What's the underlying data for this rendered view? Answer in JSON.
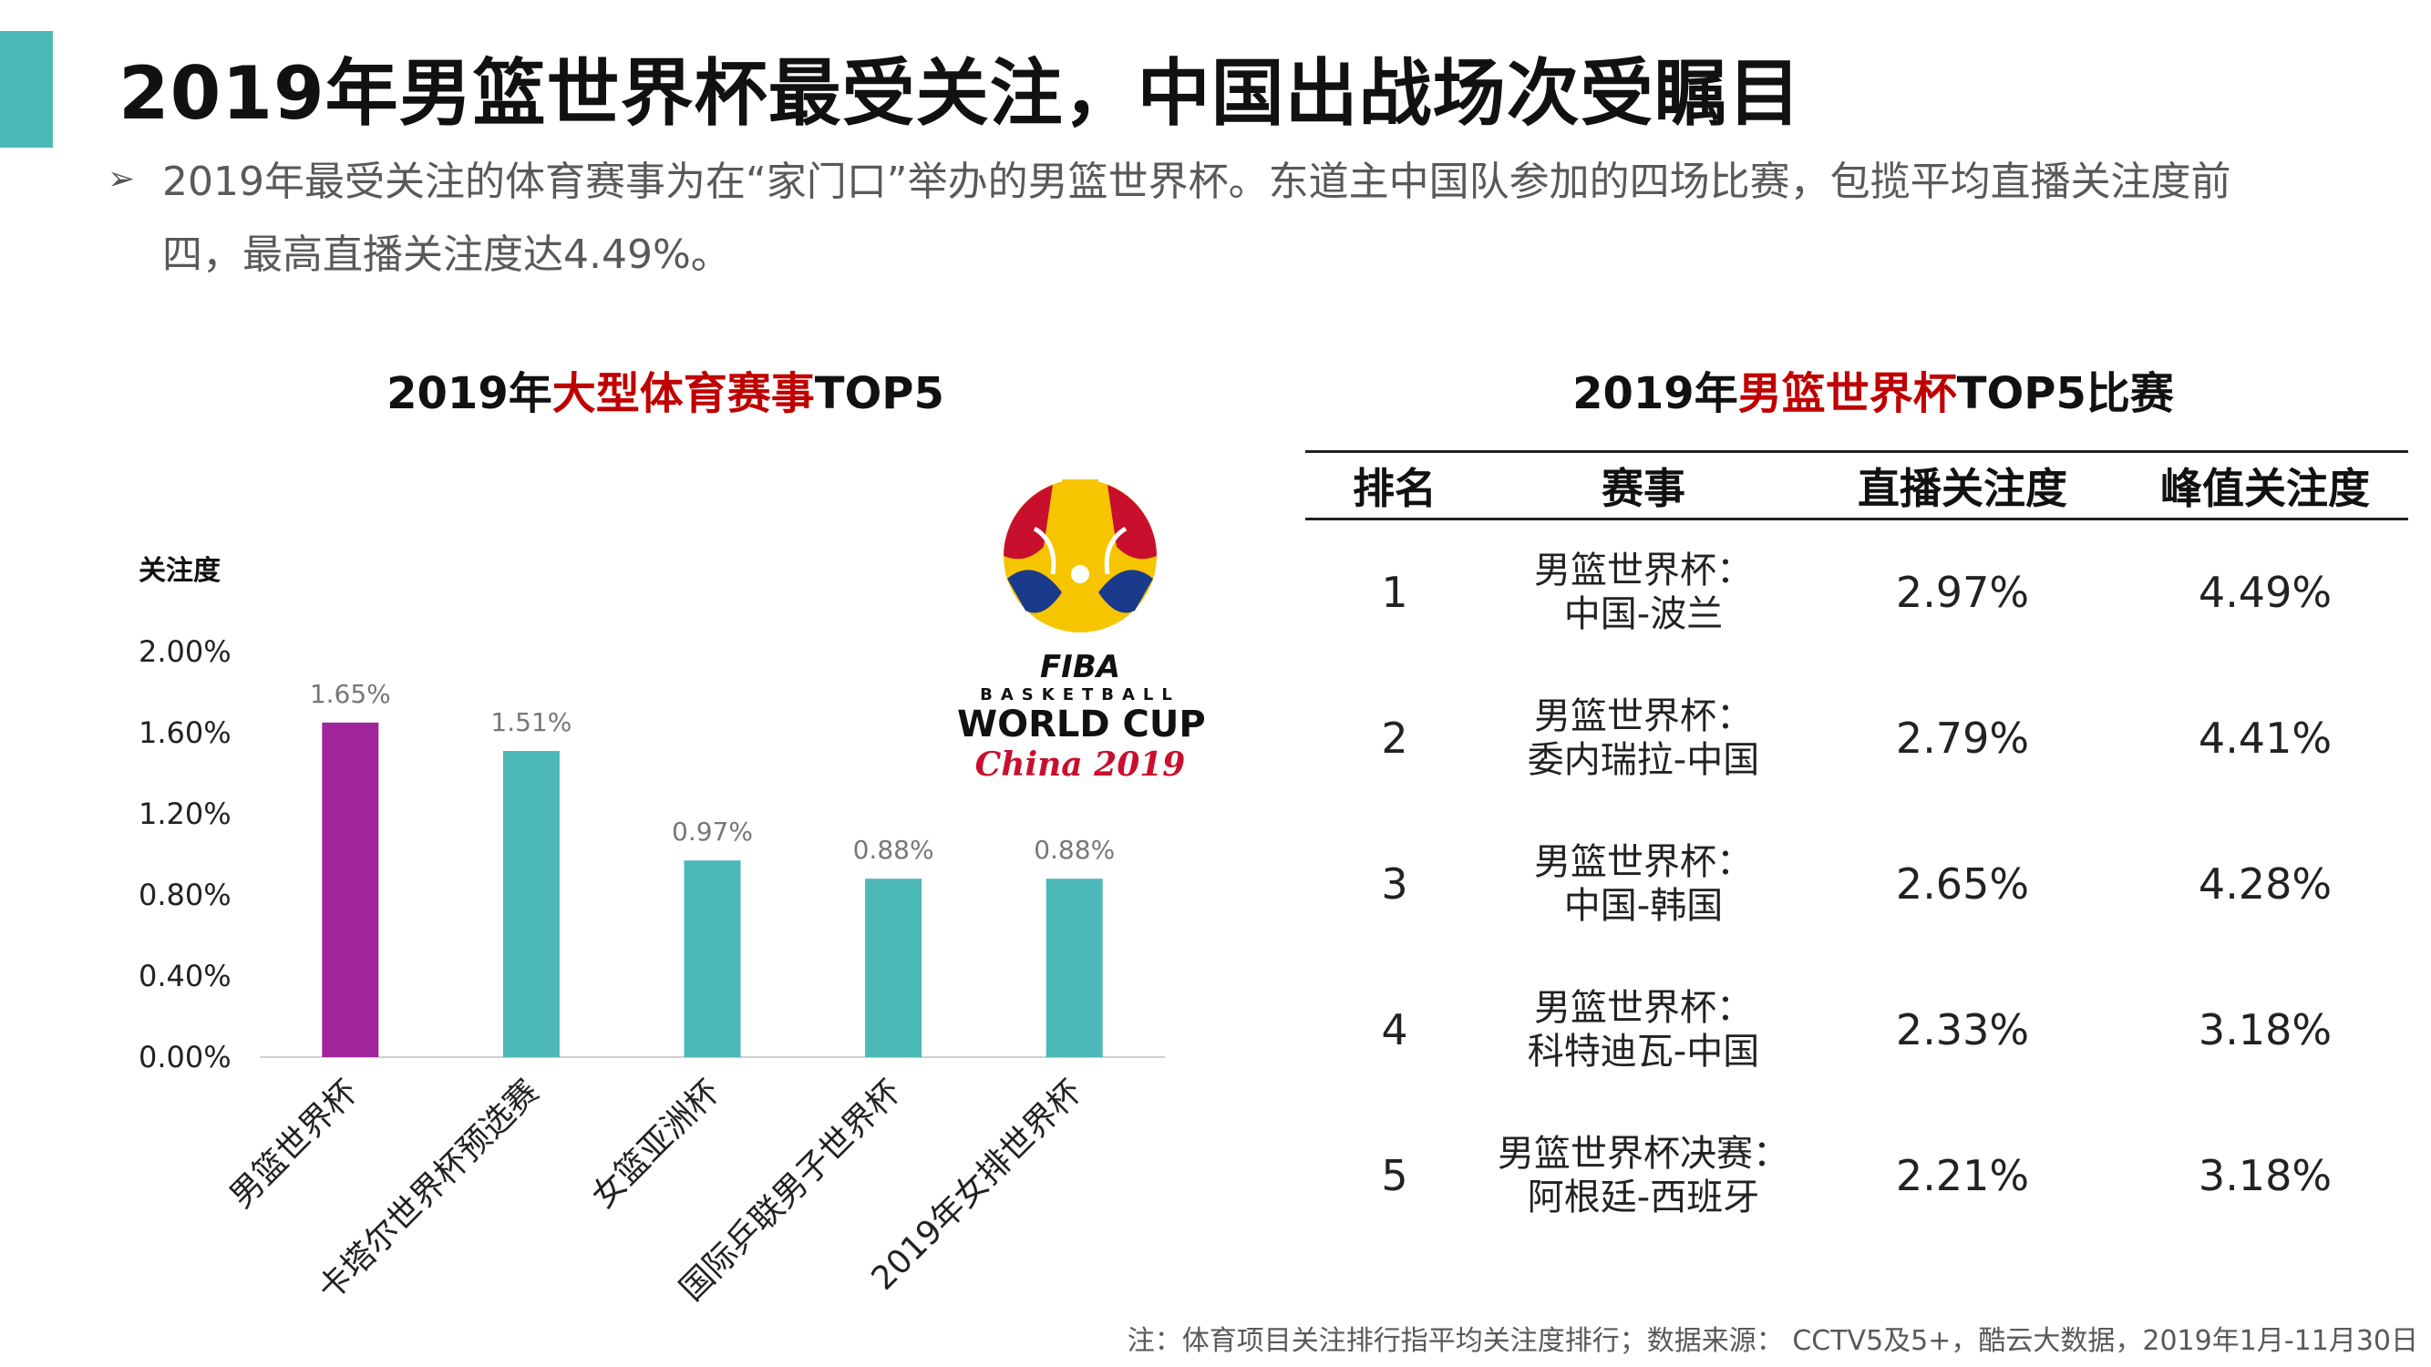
{
  "header": {
    "title": "2019年男篮世界杯最受关注，中国出战场次受瞩目",
    "bullet_line1": "2019年最受关注的体育赛事为在“家门口”举办的男篮世界杯。东道主中国队参加的四场比赛，包揽平均直播关注度前",
    "bullet_line2": "四，最高直播关注度达4.49%。"
  },
  "chart_title": {
    "prefix": "2019年",
    "highlight": "大型体育赛事",
    "suffix": "TOP5"
  },
  "chart_data": {
    "type": "bar",
    "ylabel": "关注度",
    "categories": [
      "男篮世界杯",
      "卡塔尔世界杯预选赛",
      "女篮亚洲杯",
      "国际乒联男子世界杯",
      "2019年女排世界杯"
    ],
    "values": [
      1.65,
      1.51,
      0.97,
      0.88,
      0.88
    ],
    "value_labels": [
      "1.65%",
      "1.51%",
      "0.97%",
      "0.88%",
      "0.88%"
    ],
    "yticks": [
      "0.00%",
      "0.40%",
      "0.80%",
      "1.20%",
      "1.60%",
      "2.00%"
    ],
    "ylim": [
      0,
      2.0
    ],
    "bar_colors": [
      "#a0259a",
      "#4db8b8",
      "#4db8b8",
      "#4db8b8",
      "#4db8b8"
    ],
    "grid": false
  },
  "logo": {
    "fiba": "FIBA",
    "basketball": "BASKETBALL",
    "world_cup": "WORLD CUP",
    "china": "China 2019"
  },
  "table_title": {
    "prefix": "2019年",
    "highlight": "男篮世界杯",
    "suffix": "TOP5比赛"
  },
  "table": {
    "headers": [
      "排名",
      "赛事",
      "直播关注度",
      "峰值关注度"
    ],
    "rows": [
      {
        "rank": "1",
        "match_line1": "男篮世界杯：",
        "match_line2": "中国-波兰",
        "live": "2.97%",
        "peak": "4.49%"
      },
      {
        "rank": "2",
        "match_line1": "男篮世界杯：",
        "match_line2": "委内瑞拉-中国",
        "live": "2.79%",
        "peak": "4.41%"
      },
      {
        "rank": "3",
        "match_line1": "男篮世界杯：",
        "match_line2": "中国-韩国",
        "live": "2.65%",
        "peak": "4.28%"
      },
      {
        "rank": "4",
        "match_line1": "男篮世界杯：",
        "match_line2": "科特迪瓦-中国",
        "live": "2.33%",
        "peak": "3.18%"
      },
      {
        "rank": "5",
        "match_line1": "男篮世界杯决赛：",
        "match_line2": "阿根廷-西班牙",
        "live": "2.21%",
        "peak": "3.18%"
      }
    ]
  },
  "footnote": "注：体育项目关注排行指平均关注度排行；数据来源： CCTV5及5+，酷云大数据，2019年1月-11月30日",
  "colors": {
    "accent": "#4db8b8",
    "highlight_red": "#c00000",
    "top_bar": "#a0259a"
  }
}
